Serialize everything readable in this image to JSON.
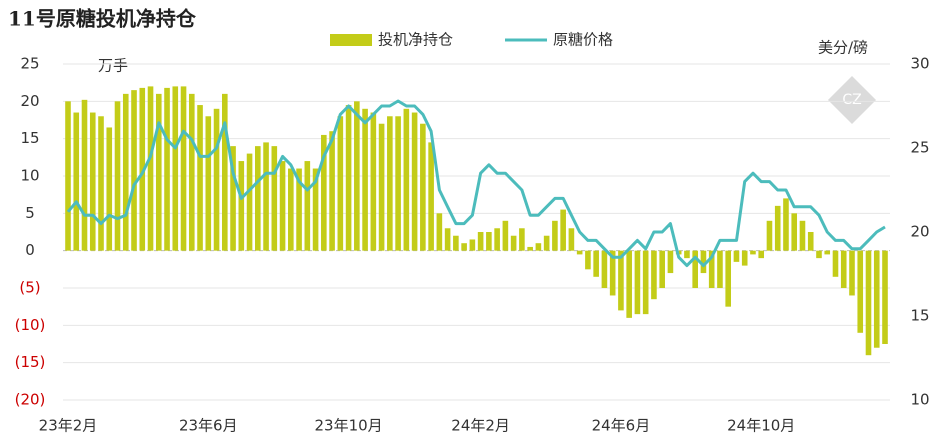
{
  "chart_data": {
    "type": "bar_line",
    "title": "11号原糖投机净持仓",
    "y_unit": "万手",
    "y2_unit": "美分/磅",
    "categories": [
      "23年2月",
      null,
      null,
      null,
      null,
      null,
      null,
      null,
      null,
      null,
      null,
      null,
      null,
      null,
      null,
      null,
      null,
      "23年6月",
      null,
      null,
      null,
      null,
      null,
      null,
      null,
      null,
      null,
      null,
      null,
      null,
      null,
      null,
      null,
      null,
      "23年10月",
      null,
      null,
      null,
      null,
      null,
      null,
      null,
      null,
      null,
      null,
      null,
      null,
      null,
      null,
      null,
      "24年2月",
      null,
      null,
      null,
      null,
      null,
      null,
      null,
      null,
      null,
      null,
      null,
      null,
      null,
      null,
      null,
      null,
      "24年6月",
      null,
      null,
      null,
      null,
      null,
      null,
      null,
      null,
      null,
      null,
      null,
      null,
      null,
      null,
      null,
      null,
      "24年10月",
      null,
      null,
      null,
      null,
      null,
      null,
      null,
      null,
      null,
      null,
      null,
      null,
      null,
      null,
      null
    ],
    "series": [
      {
        "name": "投机净持仓",
        "type": "bar",
        "color": "#c3cc18",
        "values": [
          20,
          18.5,
          20.2,
          18.5,
          18,
          16.5,
          20,
          21,
          21.5,
          21.8,
          22,
          21,
          21.8,
          22,
          22,
          21,
          19.5,
          18,
          19,
          21,
          14,
          12,
          13,
          14,
          14.5,
          14,
          12,
          11,
          11,
          12,
          11,
          15.5,
          16,
          18,
          19.5,
          20,
          19,
          18.5,
          17,
          18,
          18,
          19,
          18.5,
          17,
          14.5,
          5,
          3,
          2,
          1,
          1.5,
          2.5,
          2.5,
          3,
          4,
          2,
          3,
          0.5,
          1,
          2,
          4,
          5.5,
          3,
          -0.5,
          -2.5,
          -3.5,
          -5,
          -6,
          -8,
          -9,
          -8.5,
          -8.5,
          -6.5,
          -5,
          -3,
          -0.5,
          -1,
          -5,
          -3,
          -5,
          -5,
          -7.5,
          -1.5,
          -2,
          -0.5,
          -1,
          4,
          6,
          7,
          5,
          4,
          2.5,
          -1,
          -0.5,
          -3.5,
          -5,
          -6,
          -11,
          -14,
          -13,
          -12.5
        ]
      },
      {
        "name": "原糖价格",
        "type": "line",
        "axis": "y2",
        "color": "#4cbcbc",
        "values": [
          21.2,
          21.8,
          21,
          21,
          20.5,
          21,
          20.8,
          21,
          22.8,
          23.5,
          24.5,
          26.5,
          25.5,
          25,
          26,
          25.5,
          24.5,
          24.5,
          25,
          26.5,
          23.5,
          22,
          22.5,
          23,
          23.5,
          23.5,
          24.5,
          24,
          23,
          22.5,
          23,
          24.5,
          25.5,
          27,
          27.5,
          27,
          26.5,
          27,
          27.5,
          27.5,
          27.8,
          27.5,
          27.5,
          27,
          26,
          22.5,
          21.5,
          20.5,
          20.5,
          21,
          23.5,
          24,
          23.5,
          23.5,
          23,
          22.5,
          21,
          21,
          21.5,
          22,
          22,
          21,
          20,
          19.5,
          19.5,
          19,
          18.5,
          18.5,
          19,
          19.5,
          19,
          20,
          20,
          20.5,
          18.5,
          18,
          18.5,
          18,
          18.5,
          19.5,
          19.5,
          19.5,
          23,
          23.5,
          23,
          23,
          22.5,
          22.5,
          21.5,
          21.5,
          21.5,
          21,
          20,
          19.5,
          19.5,
          19,
          19,
          19.5,
          20,
          20.3
        ]
      }
    ],
    "ylim": [
      -20,
      25
    ],
    "yticks": [
      {
        "value": -20,
        "label": "(20)"
      },
      {
        "value": -15,
        "label": "(15)"
      },
      {
        "value": -10,
        "label": "(10)"
      },
      {
        "value": -5,
        "label": "(5)"
      },
      0,
      5,
      10,
      15,
      20,
      25
    ],
    "negative_tick_color": "#cc0000",
    "y2lim": [
      10,
      30
    ],
    "y2ticks": [
      10,
      15,
      20,
      25,
      30
    ],
    "grid": true
  }
}
